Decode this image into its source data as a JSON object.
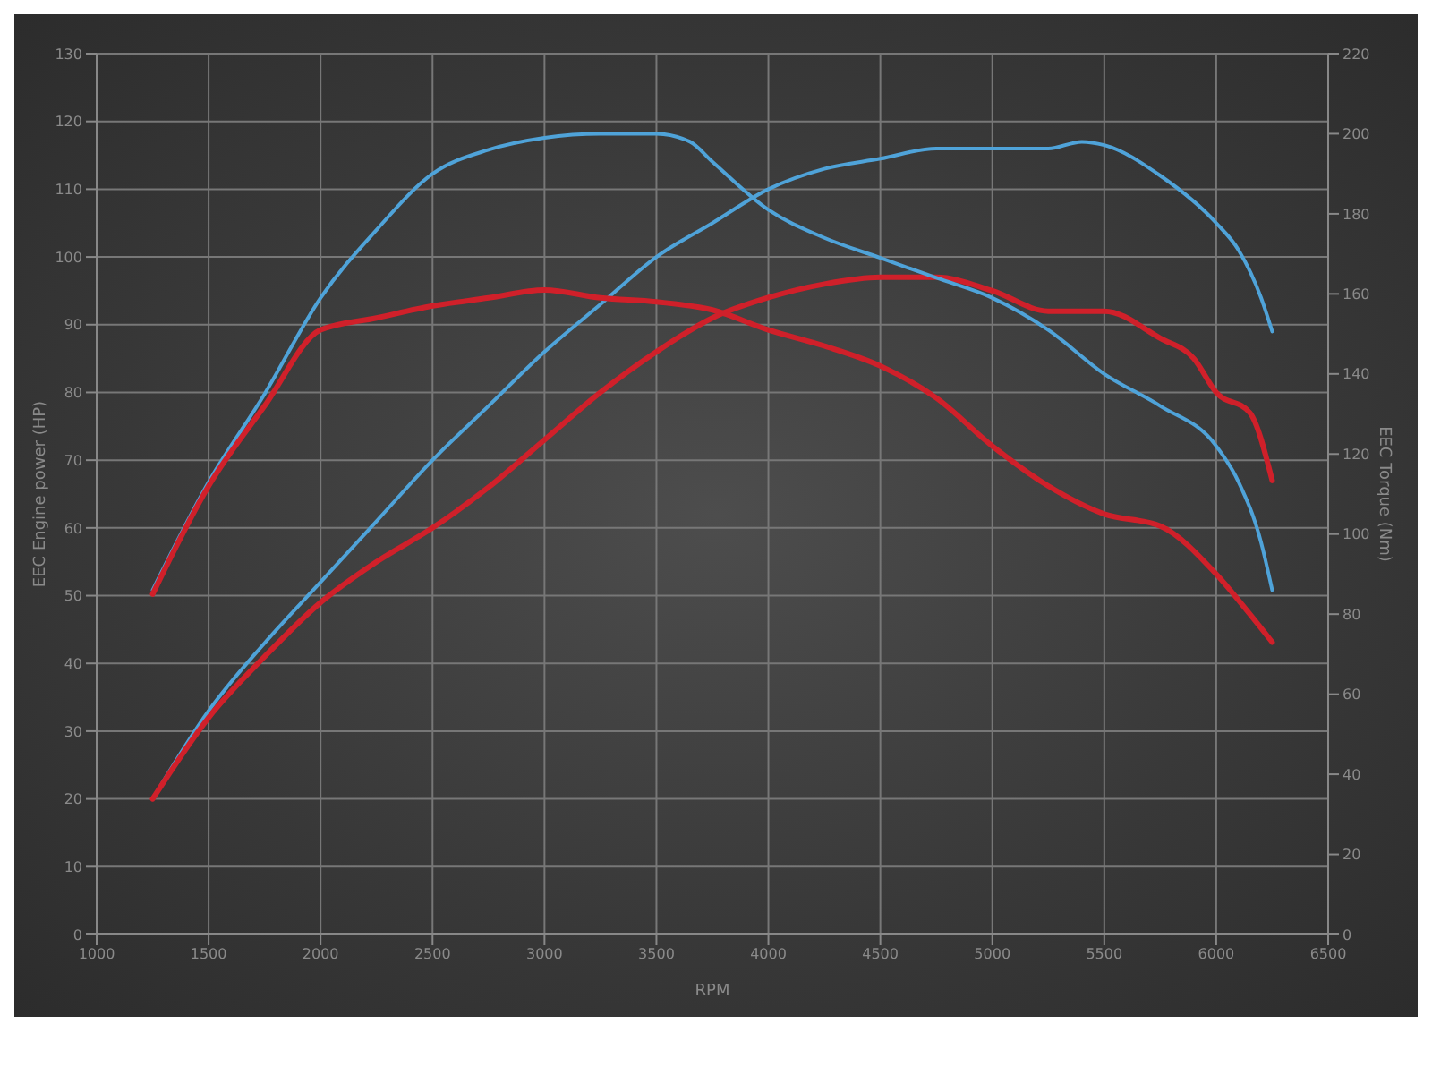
{
  "chart_data": {
    "type": "line",
    "xlabel": "RPM",
    "ylabel": "EEC Engine power (HP)",
    "y2label": "EEC Torque (Nm)",
    "xlim": [
      1000,
      6500
    ],
    "xticks": [
      1000,
      1500,
      2000,
      2500,
      3000,
      3500,
      4000,
      4500,
      5000,
      5500,
      6000,
      6500
    ],
    "ylim": [
      0,
      130
    ],
    "yticks": [
      0,
      10,
      20,
      30,
      40,
      50,
      60,
      70,
      80,
      90,
      100,
      110,
      120,
      130
    ],
    "y2lim": [
      0,
      220
    ],
    "y2ticks": [
      0,
      20,
      40,
      60,
      80,
      100,
      120,
      140,
      160,
      180,
      200,
      220
    ],
    "grid": true,
    "marker": "none",
    "line_style": "solid",
    "series": [
      {
        "color": "#4fa3d9",
        "x": [
          1250,
          1500,
          1750,
          2000,
          2250,
          2500,
          2750,
          3000,
          3250,
          3500,
          3750,
          4000,
          4250,
          4500,
          4750,
          5000,
          5250,
          5400,
          5500,
          5750,
          6000,
          6100,
          6200,
          6250
        ],
        "values": [
          20,
          33,
          43,
          52,
          61,
          70,
          78,
          86,
          93,
          100,
          105,
          110,
          113,
          114.5,
          116,
          116,
          116,
          117,
          116.5,
          112,
          105,
          101,
          94,
          89
        ]
      },
      {
        "color": "#d0202a",
        "x": [
          1250,
          1500,
          1750,
          2000,
          2250,
          2500,
          2750,
          3000,
          3250,
          3500,
          3750,
          4000,
          4250,
          4500,
          4750,
          5000,
          5250,
          5500,
          5750,
          5900,
          6000,
          6150,
          6250
        ],
        "values": [
          20,
          32,
          41,
          49,
          55,
          60,
          66,
          73,
          80,
          86,
          91,
          94,
          96,
          97,
          97,
          95,
          92,
          92,
          88,
          85,
          80,
          77,
          67
        ]
      },
      {
        "color": "#4fa3d9",
        "axis": "y2",
        "x": [
          1250,
          1500,
          1750,
          2000,
          2250,
          2500,
          2750,
          3000,
          3250,
          3500,
          3650,
          3750,
          4000,
          4250,
          4500,
          4750,
          5000,
          5250,
          5500,
          5750,
          6000,
          6100,
          6200,
          6250
        ],
        "values": [
          86,
          113,
          135,
          159,
          176,
          190,
          196,
          199,
          200,
          200,
          198,
          193,
          181,
          174,
          169,
          164,
          159,
          151,
          140,
          132,
          122,
          113,
          98,
          86
        ]
      },
      {
        "color": "#d0202a",
        "axis": "y2",
        "x": [
          1250,
          1500,
          1750,
          2000,
          2250,
          2500,
          2750,
          3000,
          3250,
          3500,
          3750,
          4000,
          4250,
          4500,
          4750,
          5000,
          5250,
          5500,
          5750,
          6000,
          6150,
          6250
        ],
        "values": [
          85,
          112,
          132,
          151,
          154,
          157,
          159,
          161,
          159,
          158,
          156,
          151,
          147,
          142,
          134,
          122,
          112,
          105,
          102,
          90,
          80,
          73
        ]
      }
    ]
  }
}
